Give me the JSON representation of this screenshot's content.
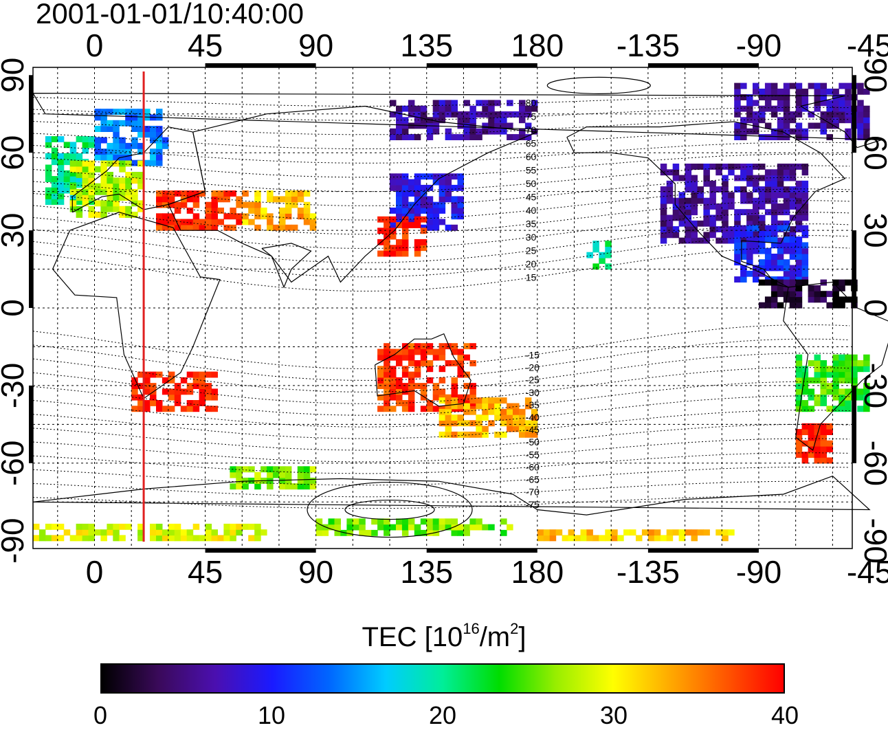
{
  "title": "2001-01-01/10:40:00",
  "map": {
    "x_ticks": [
      "0",
      "45",
      "90",
      "135",
      "180",
      "-135",
      "-90",
      "-45"
    ],
    "y_ticks": [
      "90",
      "60",
      "30",
      "0",
      "-30",
      "-60",
      "-90"
    ],
    "lon_range": [
      -25,
      308
    ],
    "lat_range": [
      -93,
      93
    ],
    "terminator_lon": 20,
    "terminator_color": "#e02020",
    "contour_labels": [
      "80",
      "75",
      "70",
      "65",
      "60",
      "55",
      "50",
      "45",
      "40",
      "35",
      "30",
      "25",
      "20",
      "15",
      "-15",
      "-20",
      "-25",
      "-30",
      "-35",
      "-40",
      "-45",
      "-50",
      "-55",
      "-60",
      "-65",
      "-70",
      "-75"
    ]
  },
  "colorbar": {
    "title_prefix": "TEC  [10",
    "title_sup1": "16",
    "title_mid": "/m",
    "title_sup2": "2",
    "title_suffix": "]",
    "min": 0,
    "max": 40,
    "tick_labels": [
      "0",
      "10",
      "20",
      "30",
      "40"
    ],
    "colors": [
      "#000000",
      "#3a0a5a",
      "#4b0fb0",
      "#1a1aff",
      "#0066ff",
      "#00ccff",
      "#00ee99",
      "#00dd00",
      "#99ee00",
      "#ffff00",
      "#ffaa00",
      "#ff5500",
      "#ff0000"
    ]
  },
  "chart_data": {
    "type": "heatmap",
    "title": "2001-01-01/10:40:00",
    "colorbar_label": "TEC [10^16/m^2]",
    "value_range": [
      0,
      40
    ],
    "lon_ticks": [
      0,
      45,
      90,
      135,
      180,
      -135,
      -90,
      -45
    ],
    "lat_ticks": [
      90,
      60,
      30,
      0,
      -30,
      -60,
      -90
    ],
    "regions": [
      {
        "lon": [
          -20,
          0
        ],
        "lat": [
          40,
          65
        ],
        "tec": 20
      },
      {
        "lon": [
          0,
          30
        ],
        "lat": [
          55,
          75
        ],
        "tec": 14
      },
      {
        "lon": [
          -10,
          20
        ],
        "lat": [
          35,
          55
        ],
        "tec": 28
      },
      {
        "lon": [
          25,
          60
        ],
        "lat": [
          30,
          45
        ],
        "tec": 38
      },
      {
        "lon": [
          60,
          90
        ],
        "lat": [
          30,
          45
        ],
        "tec": 33
      },
      {
        "lon": [
          120,
          150
        ],
        "lat": [
          30,
          50
        ],
        "tec": 9
      },
      {
        "lon": [
          115,
          135
        ],
        "lat": [
          20,
          35
        ],
        "tec": 39
      },
      {
        "lon": [
          15,
          50
        ],
        "lat": [
          -40,
          -25
        ],
        "tec": 39
      },
      {
        "lon": [
          115,
          155
        ],
        "lat": [
          -40,
          -15
        ],
        "tec": 38
      },
      {
        "lon": [
          140,
          180
        ],
        "lat": [
          -50,
          -35
        ],
        "tec": 33
      },
      {
        "lon": [
          -130,
          -70
        ],
        "lat": [
          25,
          55
        ],
        "tec": 6
      },
      {
        "lon": [
          -100,
          -70
        ],
        "lat": [
          10,
          30
        ],
        "tec": 10
      },
      {
        "lon": [
          -75,
          -45
        ],
        "lat": [
          -40,
          -20
        ],
        "tec": 24
      },
      {
        "lon": [
          -75,
          -60
        ],
        "lat": [
          -60,
          -45
        ],
        "tec": 39
      },
      {
        "lon": [
          -90,
          -50
        ],
        "lat": [
          0,
          10
        ],
        "tec": 2
      },
      {
        "lon": [
          -160,
          -150
        ],
        "lat": [
          15,
          25
        ],
        "tec": 20
      },
      {
        "lon": [
          -25,
          70
        ],
        "lat": [
          -90,
          -85
        ],
        "tec": 29
      },
      {
        "lon": [
          90,
          170
        ],
        "lat": [
          -88,
          -82
        ],
        "tec": 26
      },
      {
        "lon": [
          180,
          260
        ],
        "lat": [
          -90,
          -86
        ],
        "tec": 32
      },
      {
        "lon": [
          55,
          90
        ],
        "lat": [
          -70,
          -62
        ],
        "tec": 26
      },
      {
        "lon": [
          -100,
          -45
        ],
        "lat": [
          65,
          85
        ],
        "tec": 6
      },
      {
        "lon": [
          120,
          180
        ],
        "lat": [
          65,
          80
        ],
        "tec": 6
      }
    ]
  }
}
